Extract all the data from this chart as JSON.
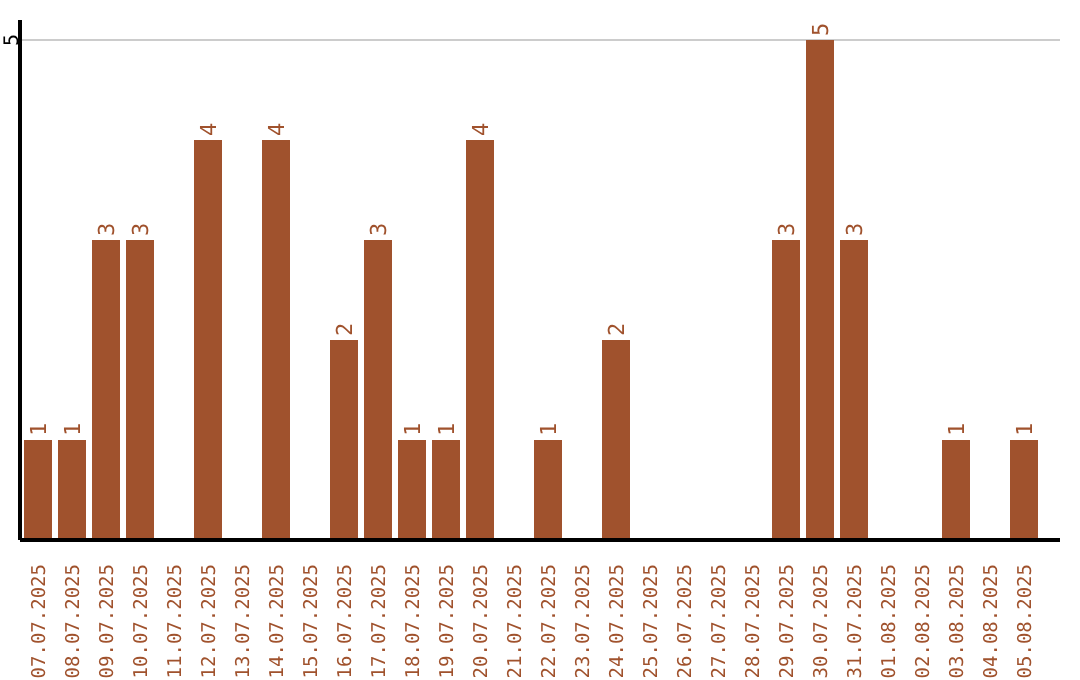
{
  "chart_data": {
    "type": "bar",
    "categories": [
      "07.07.2025",
      "08.07.2025",
      "09.07.2025",
      "10.07.2025",
      "11.07.2025",
      "12.07.2025",
      "13.07.2025",
      "14.07.2025",
      "15.07.2025",
      "16.07.2025",
      "17.07.2025",
      "18.07.2025",
      "19.07.2025",
      "20.07.2025",
      "21.07.2025",
      "22.07.2025",
      "23.07.2025",
      "24.07.2025",
      "25.07.2025",
      "26.07.2025",
      "27.07.2025",
      "28.07.2025",
      "29.07.2025",
      "30.07.2025",
      "31.07.2025",
      "01.08.2025",
      "02.08.2025",
      "03.08.2025",
      "04.08.2025",
      "05.08.2025"
    ],
    "values": [
      1,
      1,
      3,
      3,
      0,
      4,
      0,
      4,
      0,
      2,
      3,
      1,
      1,
      4,
      0,
      1,
      0,
      2,
      0,
      0,
      0,
      0,
      3,
      5,
      3,
      0,
      0,
      1,
      0,
      1
    ],
    "value_labels": [
      "1",
      "1",
      "3",
      "3",
      null,
      "4",
      null,
      "4",
      null,
      "2",
      "3",
      "1",
      "1",
      "4",
      null,
      "1",
      null,
      "2",
      null,
      null,
      null,
      null,
      "3",
      "5",
      "3",
      null,
      null,
      "1",
      null,
      "1"
    ],
    "color": "#a0522d",
    "ylim": [
      0,
      5.2
    ],
    "yticks": [
      5
    ],
    "grid": "y"
  }
}
